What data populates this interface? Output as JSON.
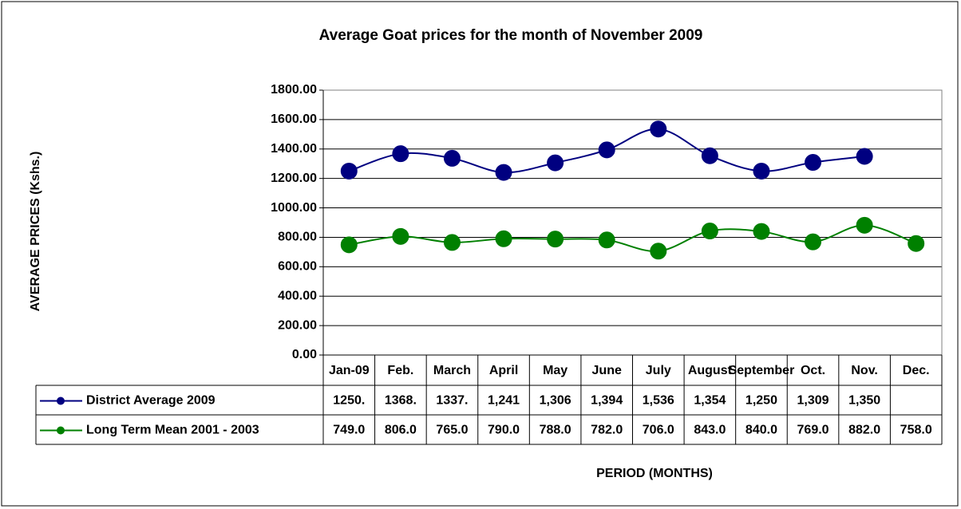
{
  "chart_data": {
    "type": "line",
    "title": "Average Goat prices for the month of November 2009",
    "y_label": "AVERAGE PRICES (Kshs.)",
    "x_label": "PERIOD (MONTHS)",
    "categories": [
      "Jan-09",
      "Feb.",
      "March",
      "April",
      "May",
      "June",
      "July",
      "August",
      "September",
      "Oct.",
      "Nov.",
      "Dec."
    ],
    "series": [
      {
        "name": "District Average 2009",
        "color": "#000080",
        "values": [
          1250,
          1368,
          1337,
          1241,
          1306,
          1394,
          1536,
          1354,
          1250,
          1309,
          1350,
          null
        ],
        "value_labels": [
          "1250.",
          "1368.",
          "1337.",
          "1,241",
          "1,306",
          "1,394",
          "1,536",
          "1,354",
          "1,250",
          "1,309",
          "1,350",
          null
        ]
      },
      {
        "name": "Long Term Mean 2001 - 2003",
        "color": "#008000",
        "values": [
          749,
          806,
          765,
          790,
          788,
          782,
          706,
          843,
          840,
          769,
          882,
          758
        ],
        "value_labels": [
          "749.0",
          "806.0",
          "765.0",
          "790.0",
          "788.0",
          "782.0",
          "706.0",
          "843.0",
          "840.0",
          "769.0",
          "882.0",
          "758.0"
        ]
      }
    ],
    "ylim": [
      0,
      1800
    ],
    "yticks": [
      {
        "value": 0,
        "label": "0.00"
      },
      {
        "value": 200,
        "label": "200.00"
      },
      {
        "value": 400,
        "label": "400.00"
      },
      {
        "value": 600,
        "label": "600.00"
      },
      {
        "value": 800,
        "label": "800.00"
      },
      {
        "value": 1000,
        "label": "1000.00"
      },
      {
        "value": 1200,
        "label": "1200.00"
      },
      {
        "value": 1400,
        "label": "1400.00"
      },
      {
        "value": 1600,
        "label": "1600.00"
      },
      {
        "value": 1800,
        "label": "1800.00"
      }
    ],
    "grid": true,
    "smooth": true,
    "data_table": true
  }
}
